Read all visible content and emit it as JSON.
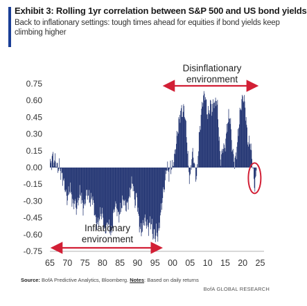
{
  "header": {
    "title": "Exhibit 3: Rolling 1yr correlation between S&P 500 and US bond yields",
    "subtitle": "Back to inflationary settings: tough times ahead for equities if bond yields keep climbing higher"
  },
  "footer": {
    "source_label": "Source:",
    "source_text": "BofA Predictive Analytics, Bloomberg.",
    "notes_label": "Notes",
    "notes_text": ": Based on daily returns",
    "brand": "BofA GLOBAL RESEARCH"
  },
  "colors": {
    "bars": "#1c2f6e",
    "arrows": "#d21f35",
    "circle": "#d21f35",
    "accent": "#1a3e96"
  },
  "chart_data": {
    "type": "bar",
    "title": "Exhibit 3: Rolling 1yr correlation between S&P 500 and US bond yields",
    "xlabel": "",
    "ylabel": "",
    "xlim": [
      1965,
      2025.3
    ],
    "ylim": [
      -0.75,
      0.75
    ],
    "x_tick_labels": [
      "65",
      "70",
      "75",
      "80",
      "85",
      "90",
      "95",
      "00",
      "05",
      "10",
      "15",
      "20",
      "25"
    ],
    "y_tick_labels": [
      "0.75",
      "0.60",
      "0.45",
      "0.30",
      "0.15",
      "0.00",
      "-0.15",
      "-0.30",
      "-0.45",
      "-0.60",
      "-0.75"
    ],
    "grid": false,
    "annotations": [
      {
        "text_lines": [
          "Inflationary",
          "environment"
        ],
        "span": [
          1965,
          1995
        ],
        "placement": "bottom"
      },
      {
        "text_lines": [
          "Disinflationary",
          "environment"
        ],
        "span": [
          1999,
          2023.5
        ],
        "placement": "top"
      }
    ],
    "highlight": {
      "x": 2023.2,
      "y": -0.12,
      "shape": "circle",
      "note": "recent return to negative correlation"
    },
    "anchors": [
      [
        1965.0,
        0.02
      ],
      [
        1965.4,
        0.05
      ],
      [
        1965.7,
        0.11
      ],
      [
        1966.0,
        0.06
      ],
      [
        1966.4,
        0.07
      ],
      [
        1966.8,
        0.03
      ],
      [
        1967.2,
        -0.02
      ],
      [
        1967.6,
        0.02
      ],
      [
        1968.0,
        -0.04
      ],
      [
        1968.5,
        -0.08
      ],
      [
        1969.0,
        -0.15
      ],
      [
        1969.4,
        -0.2
      ],
      [
        1969.8,
        -0.3
      ],
      [
        1970.2,
        -0.24
      ],
      [
        1970.7,
        -0.18
      ],
      [
        1971.1,
        -0.25
      ],
      [
        1971.5,
        -0.34
      ],
      [
        1972.0,
        -0.3
      ],
      [
        1972.5,
        -0.38
      ],
      [
        1973.0,
        -0.3
      ],
      [
        1973.5,
        -0.22
      ],
      [
        1974.0,
        -0.28
      ],
      [
        1974.5,
        -0.38
      ],
      [
        1975.0,
        -0.3
      ],
      [
        1975.5,
        -0.22
      ],
      [
        1976.0,
        -0.26
      ],
      [
        1976.5,
        -0.31
      ],
      [
        1977.0,
        -0.26
      ],
      [
        1977.5,
        -0.35
      ],
      [
        1978.0,
        -0.48
      ],
      [
        1978.5,
        -0.52
      ],
      [
        1979.0,
        -0.46
      ],
      [
        1979.5,
        -0.4
      ],
      [
        1980.0,
        -0.43
      ],
      [
        1980.5,
        -0.58
      ],
      [
        1981.0,
        -0.54
      ],
      [
        1981.5,
        -0.5
      ],
      [
        1982.0,
        -0.54
      ],
      [
        1982.5,
        -0.6
      ],
      [
        1983.0,
        -0.44
      ],
      [
        1983.5,
        -0.33
      ],
      [
        1984.0,
        -0.36
      ],
      [
        1984.5,
        -0.44
      ],
      [
        1985.0,
        -0.4
      ],
      [
        1985.5,
        -0.32
      ],
      [
        1986.0,
        -0.28
      ],
      [
        1986.5,
        -0.36
      ],
      [
        1987.0,
        -0.34
      ],
      [
        1987.5,
        -0.28
      ],
      [
        1988.0,
        -0.18
      ],
      [
        1988.5,
        -0.12
      ],
      [
        1989.0,
        -0.26
      ],
      [
        1989.3,
        -0.34
      ],
      [
        1989.7,
        -0.22
      ],
      [
        1990.0,
        -0.38
      ],
      [
        1990.5,
        -0.52
      ],
      [
        1991.0,
        -0.58
      ],
      [
        1991.5,
        -0.52
      ],
      [
        1992.0,
        -0.46
      ],
      [
        1992.5,
        -0.5
      ],
      [
        1993.0,
        -0.55
      ],
      [
        1993.5,
        -0.49
      ],
      [
        1994.0,
        -0.5
      ],
      [
        1994.3,
        -0.62
      ],
      [
        1994.7,
        -0.58
      ],
      [
        1995.0,
        -0.64
      ],
      [
        1995.3,
        -0.56
      ],
      [
        1995.6,
        -0.61
      ],
      [
        1996.0,
        -0.58
      ],
      [
        1996.3,
        -0.46
      ],
      [
        1996.7,
        -0.38
      ],
      [
        1997.0,
        -0.28
      ],
      [
        1997.3,
        -0.22
      ],
      [
        1997.7,
        -0.16
      ],
      [
        1998.0,
        -0.06
      ],
      [
        1998.3,
        0.02
      ],
      [
        1998.7,
        -0.04
      ],
      [
        1999.0,
        -0.06
      ],
      [
        1999.3,
        0.02
      ],
      [
        1999.7,
        -0.02
      ],
      [
        2000.0,
        0.03
      ],
      [
        2000.4,
        0.08
      ],
      [
        2000.8,
        0.18
      ],
      [
        2001.2,
        0.28
      ],
      [
        2001.6,
        0.38
      ],
      [
        2002.0,
        0.46
      ],
      [
        2002.4,
        0.52
      ],
      [
        2002.8,
        0.48
      ],
      [
        2003.2,
        0.54
      ],
      [
        2003.6,
        0.42
      ],
      [
        2004.0,
        0.26
      ],
      [
        2004.3,
        0.08
      ],
      [
        2004.6,
        -0.05
      ],
      [
        2004.9,
        -0.12
      ],
      [
        2005.2,
        0.02
      ],
      [
        2005.6,
        0.14
      ],
      [
        2006.0,
        0.08
      ],
      [
        2006.3,
        -0.02
      ],
      [
        2006.6,
        -0.1
      ],
      [
        2007.0,
        -0.03
      ],
      [
        2007.3,
        0.18
      ],
      [
        2007.7,
        0.34
      ],
      [
        2008.0,
        0.44
      ],
      [
        2008.4,
        0.58
      ],
      [
        2008.8,
        0.64
      ],
      [
        2009.2,
        0.66
      ],
      [
        2009.6,
        0.54
      ],
      [
        2010.0,
        0.46
      ],
      [
        2010.4,
        0.52
      ],
      [
        2010.8,
        0.58
      ],
      [
        2011.2,
        0.5
      ],
      [
        2011.6,
        0.6
      ],
      [
        2012.0,
        0.56
      ],
      [
        2012.4,
        0.62
      ],
      [
        2012.8,
        0.52
      ],
      [
        2013.2,
        0.26
      ],
      [
        2013.6,
        0.06
      ],
      [
        2014.0,
        0.12
      ],
      [
        2014.4,
        0.2
      ],
      [
        2014.8,
        0.16
      ],
      [
        2015.2,
        0.28
      ],
      [
        2015.6,
        0.4
      ],
      [
        2016.0,
        0.46
      ],
      [
        2016.4,
        0.44
      ],
      [
        2016.8,
        0.22
      ],
      [
        2017.2,
        0.12
      ],
      [
        2017.6,
        0.04
      ],
      [
        2018.0,
        0.1
      ],
      [
        2018.4,
        0.22
      ],
      [
        2018.8,
        0.36
      ],
      [
        2019.2,
        0.5
      ],
      [
        2019.6,
        0.58
      ],
      [
        2020.0,
        0.64
      ],
      [
        2020.4,
        0.6
      ],
      [
        2020.8,
        0.48
      ],
      [
        2021.2,
        0.3
      ],
      [
        2021.6,
        0.2
      ],
      [
        2022.0,
        0.24
      ],
      [
        2022.4,
        0.14
      ],
      [
        2022.7,
        0.05
      ],
      [
        2023.0,
        -0.06
      ],
      [
        2023.3,
        -0.18
      ],
      [
        2023.6,
        -0.12
      ],
      [
        2023.9,
        -0.03
      ]
    ]
  }
}
